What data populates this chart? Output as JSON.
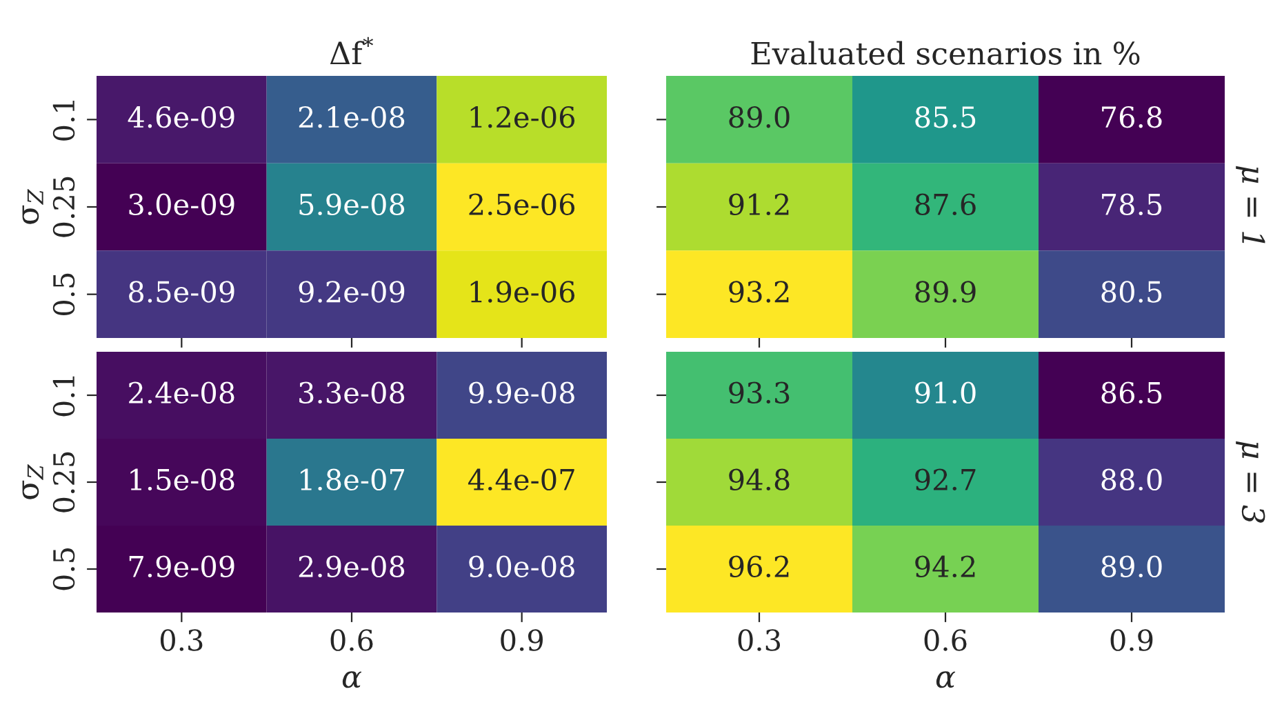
{
  "chart_data": [
    {
      "type": "heatmap",
      "title": "Δf$^{*}$",
      "ylabel": "σ$_{Z}$",
      "categories": [
        "0.3",
        "0.6",
        "0.9"
      ],
      "y_categories": [
        "0.1",
        "0.25",
        "0.5"
      ],
      "tick_labels": "y",
      "cells": [
        [
          4.6e-09,
          2.1e-08,
          1.2e-06
        ],
        [
          3e-09,
          5.9e-08,
          2.5e-06
        ],
        [
          8.5e-09,
          9.2e-09,
          1.9e-06
        ]
      ],
      "cell_labels": [
        [
          "4.6e-09",
          "2.1e-08",
          "1.2e-06"
        ],
        [
          "3.0e-09",
          "5.9e-08",
          "2.5e-06"
        ],
        [
          "8.5e-09",
          "9.2e-09",
          "1.9e-06"
        ]
      ]
    },
    {
      "type": "heatmap",
      "title": "Evaluated scenarios in %",
      "y2label": "μ = 1",
      "categories": [
        "0.3",
        "0.6",
        "0.9"
      ],
      "y_categories": [
        "0.1",
        "0.25",
        "0.5"
      ],
      "tick_labels": false,
      "cells": [
        [
          89.0,
          85.5,
          76.8
        ],
        [
          91.2,
          87.6,
          78.5
        ],
        [
          93.2,
          89.9,
          80.5
        ]
      ],
      "cell_labels": [
        [
          "89.0",
          "85.5",
          "76.8"
        ],
        [
          "91.2",
          "87.6",
          "78.5"
        ],
        [
          "93.2",
          "89.9",
          "80.5"
        ]
      ]
    },
    {
      "type": "heatmap",
      "xlabel": "α",
      "ylabel": "σ$_{Z}$",
      "categories": [
        "0.3",
        "0.6",
        "0.9"
      ],
      "y_categories": [
        "0.1",
        "0.25",
        "0.5"
      ],
      "cells": [
        [
          2.4e-08,
          3.3e-08,
          9.9e-08
        ],
        [
          1.5e-08,
          1.8e-07,
          4.4e-07
        ],
        [
          7.9e-09,
          2.9e-08,
          9e-08
        ]
      ],
      "cell_labels": [
        [
          "2.4e-08",
          "3.3e-08",
          "9.9e-08"
        ],
        [
          "1.5e-08",
          "1.8e-07",
          "4.4e-07"
        ],
        [
          "7.9e-09",
          "2.9e-08",
          "9.0e-08"
        ]
      ]
    },
    {
      "type": "heatmap",
      "xlabel": "α",
      "y2label": "μ = 3",
      "categories": [
        "0.3",
        "0.6",
        "0.9"
      ],
      "y_categories": [
        "0.1",
        "0.25",
        "0.5"
      ],
      "tick_labels": "x",
      "cells": [
        [
          93.3,
          91.0,
          86.5
        ],
        [
          94.8,
          92.7,
          88.0
        ],
        [
          96.2,
          94.2,
          89.0
        ]
      ],
      "cell_labels": [
        [
          "93.3",
          "91.0",
          "86.5"
        ],
        [
          "94.8",
          "92.7",
          "88.0"
        ],
        [
          "96.2",
          "94.2",
          "89.0"
        ]
      ]
    }
  ]
}
